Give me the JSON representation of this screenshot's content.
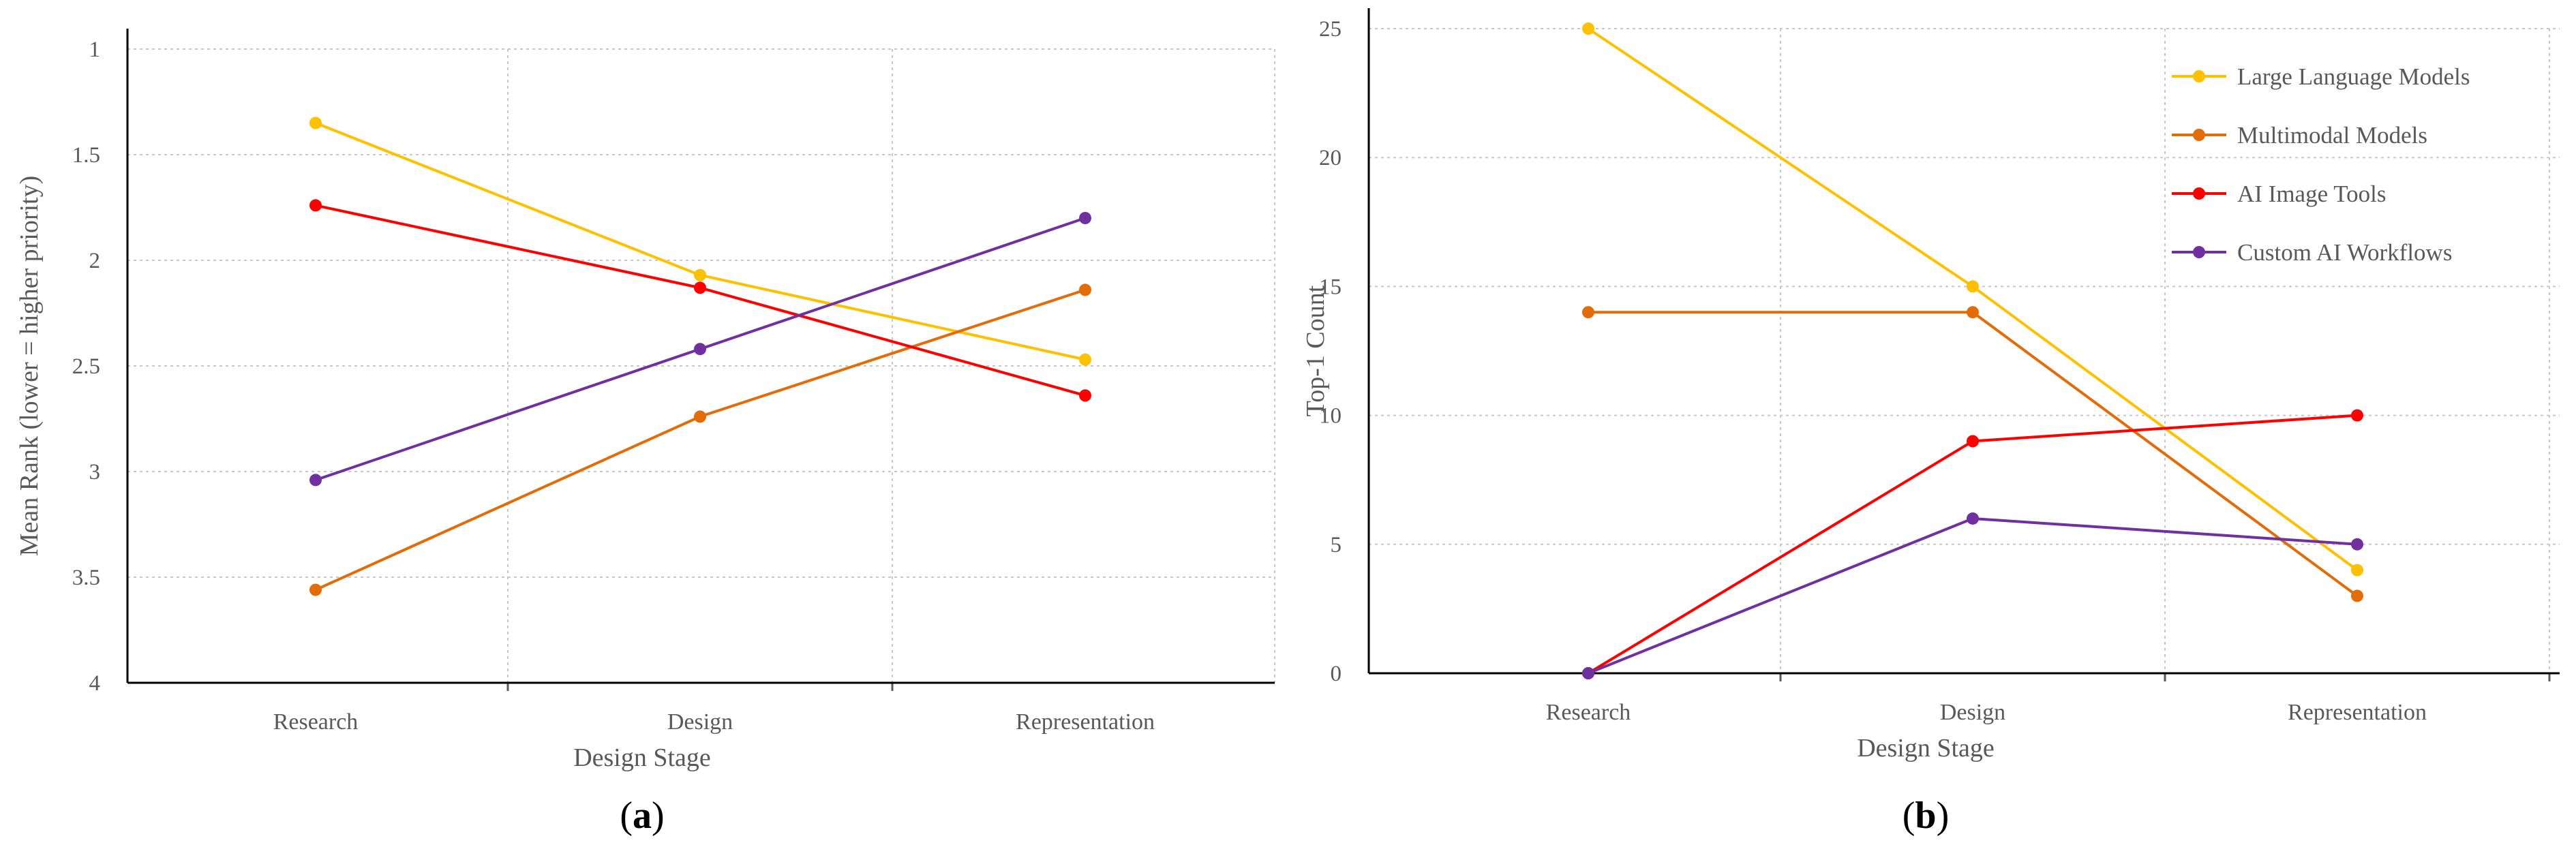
{
  "figure": {
    "panels": [
      "a",
      "b"
    ]
  },
  "chart_data": [
    {
      "type": "line",
      "panel": "a",
      "panel_label": "a",
      "categories": [
        "Research",
        "Design",
        "Representation"
      ],
      "xlabel": "Design Stage",
      "ylabel": "Mean Rank (lower = higher priority)",
      "ylim": [
        1,
        4
      ],
      "y_inverted": true,
      "yticks": [
        1,
        1.5,
        2,
        2.5,
        3,
        3.5,
        4
      ],
      "ytick_labels": [
        "1",
        "1.5",
        "2",
        "2.5",
        "3",
        "3.5",
        "4"
      ],
      "grid": true,
      "legend": "none",
      "series": [
        {
          "name": "Large Language Models",
          "color": "#FFC000",
          "values": [
            1.35,
            2.07,
            2.47
          ]
        },
        {
          "name": "Multimodal Models",
          "color": "#E36C09",
          "values": [
            3.56,
            2.74,
            2.14
          ]
        },
        {
          "name": "AI Image Tools",
          "color": "#FF0000",
          "values": [
            1.74,
            2.13,
            2.64
          ]
        },
        {
          "name": "Custom AI Workflows",
          "color": "#7030A0",
          "values": [
            3.04,
            2.42,
            1.8
          ]
        }
      ]
    },
    {
      "type": "line",
      "panel": "b",
      "panel_label": "b",
      "categories": [
        "Research",
        "Design",
        "Representation"
      ],
      "xlabel": "Design Stage",
      "ylabel": "Top-1 Count",
      "ylim": [
        0,
        25
      ],
      "yticks": [
        0,
        5,
        10,
        15,
        20,
        25
      ],
      "ytick_labels": [
        "0",
        "5",
        "10",
        "15",
        "20",
        "25"
      ],
      "grid": true,
      "legend": "top-right",
      "series": [
        {
          "name": "Large Language Models",
          "color": "#FFC000",
          "values": [
            25,
            15,
            4
          ]
        },
        {
          "name": "Multimodal Models",
          "color": "#E36C09",
          "values": [
            14,
            14,
            3
          ]
        },
        {
          "name": "AI Image Tools",
          "color": "#FF0000",
          "values": [
            0,
            9,
            10
          ]
        },
        {
          "name": "Custom AI Workflows",
          "color": "#7030A0",
          "values": [
            0,
            6,
            5
          ]
        }
      ]
    }
  ]
}
